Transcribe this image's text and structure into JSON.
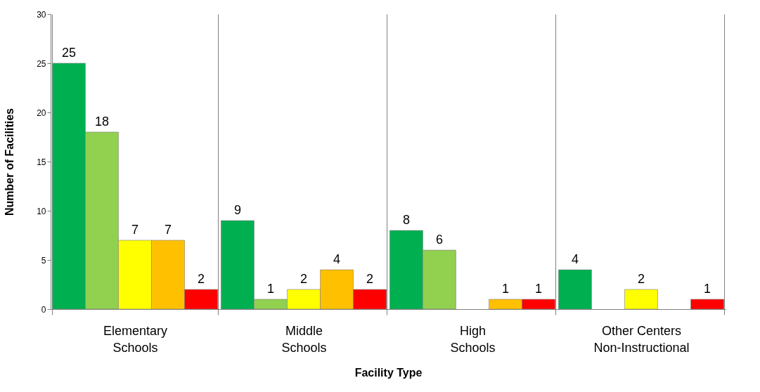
{
  "chart_data": {
    "type": "bar",
    "xlabel": "Facility Type",
    "ylabel": "Number of Facilities",
    "categories": [
      "Elementary\nSchools",
      "Middle\nSchools",
      "High\nSchools",
      "Other Centers\nNon-Instructional"
    ],
    "series": [
      {
        "color": "#00b050",
        "values": [
          25,
          9,
          8,
          4
        ]
      },
      {
        "color": "#92d050",
        "values": [
          18,
          1,
          6,
          null
        ]
      },
      {
        "color": "#ffff00",
        "values": [
          7,
          2,
          null,
          2
        ]
      },
      {
        "color": "#ffc000",
        "values": [
          7,
          4,
          1,
          null
        ]
      },
      {
        "color": "#ff0000",
        "values": [
          2,
          2,
          1,
          1
        ]
      }
    ],
    "ylim": [
      0,
      30
    ],
    "yticks": [
      0,
      5,
      10,
      15,
      20,
      25,
      30
    ],
    "grid": "x",
    "legend": false,
    "data_labels": true
  }
}
